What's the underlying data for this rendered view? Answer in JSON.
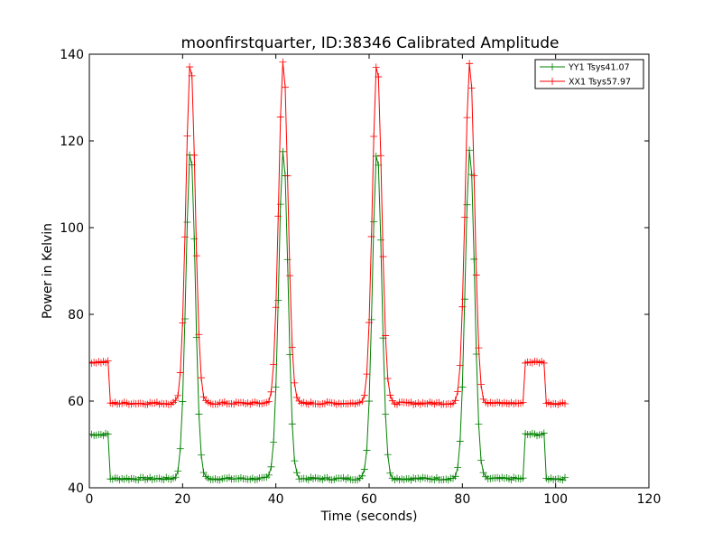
{
  "chart_data": {
    "type": "line",
    "title": "moonfirstquarter, ID:38346 Calibrated Amplitude",
    "xlabel": "Time (seconds)",
    "ylabel": "Power in Kelvin",
    "xlim": [
      0,
      120
    ],
    "ylim": [
      40,
      140
    ],
    "xticks": [
      0,
      20,
      40,
      60,
      80,
      100,
      120
    ],
    "yticks": [
      40,
      60,
      80,
      100,
      120,
      140
    ],
    "xtick_labels": [
      "0",
      "20",
      "40",
      "60",
      "80",
      "100",
      "120"
    ],
    "ytick_labels": [
      "40",
      "60",
      "80",
      "100",
      "120",
      "140"
    ],
    "legend_position": "top-right",
    "grid": false,
    "marker": "+",
    "sample_step": 0.5,
    "time_range": [
      0,
      102
    ],
    "series": [
      {
        "name": "YY1 Tsys41.07",
        "color": "#008000",
        "high_level": 52.3,
        "low_level": 42.1,
        "high_segments": [
          [
            0,
            4
          ],
          [
            93.5,
            97.5
          ]
        ],
        "peaks": [
          {
            "center": 21.7,
            "peak": 118
          },
          {
            "center": 41.6,
            "peak": 118
          },
          {
            "center": 61.7,
            "peak": 118
          },
          {
            "center": 81.6,
            "peak": 118
          }
        ],
        "peak_width": 1.0
      },
      {
        "name": "XX1 Tsys57.97",
        "color": "#ff0000",
        "high_level": 69.0,
        "low_level": 59.5,
        "high_segments": [
          [
            0,
            4
          ],
          [
            93.5,
            97.5
          ]
        ],
        "peaks": [
          {
            "center": 21.7,
            "peak": 138.5
          },
          {
            "center": 41.6,
            "peak": 138.5
          },
          {
            "center": 61.7,
            "peak": 138.5
          },
          {
            "center": 81.6,
            "peak": 138.5
          }
        ],
        "peak_width": 1.0
      }
    ]
  }
}
